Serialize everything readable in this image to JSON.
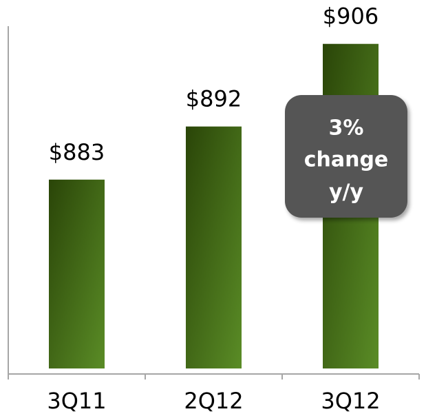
{
  "chart_data": {
    "type": "bar",
    "categories": [
      "3Q11",
      "2Q12",
      "3Q12"
    ],
    "values": [
      883,
      892,
      906
    ],
    "value_labels": [
      "$883",
      "$892",
      "$906"
    ],
    "color": "#4a7a1c",
    "ylim": [
      851,
      909
    ],
    "annotation": [
      "3%",
      "change",
      "y/y"
    ]
  }
}
